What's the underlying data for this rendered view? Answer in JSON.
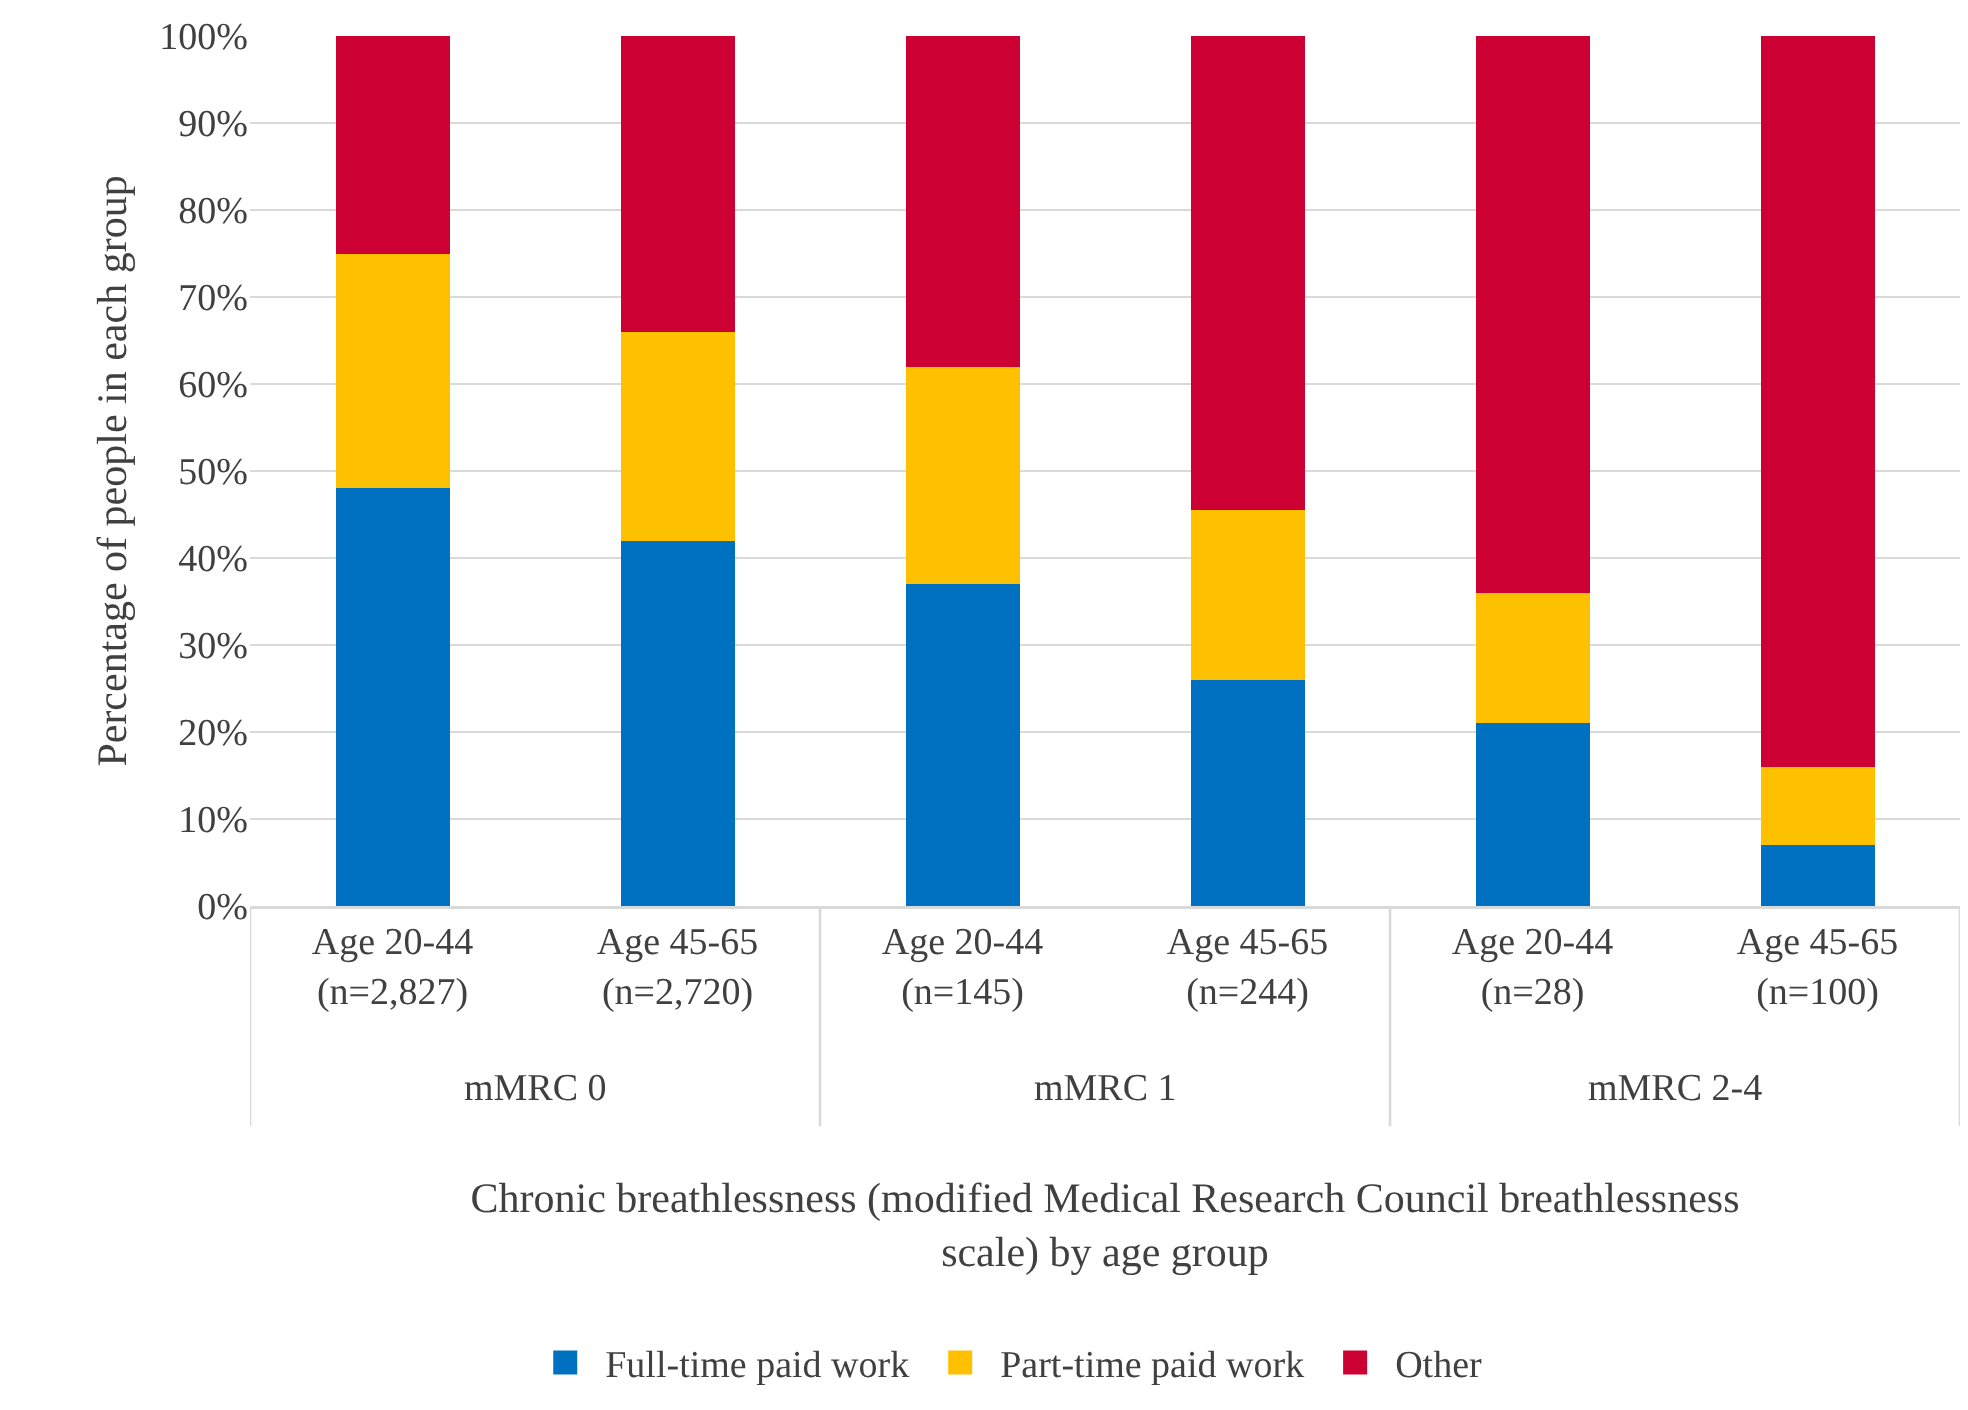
{
  "chart_data": {
    "type": "bar",
    "stacked": true,
    "xlabel": "Chronic breathlessness (modified Medical Research Council breathlessness\nscale) by age group",
    "ylabel": "Percentage of people in each group",
    "categories": [
      "Age 20-44\n(n=2,827)",
      "Age 45-65\n(n=2,720)",
      "Age 20-44\n(n=145)",
      "Age 45-65\n(n=244)",
      "Age 20-44\n(n=28)",
      "Age 45-65\n(n=100)"
    ],
    "series": [
      {
        "name": "Full-time paid work",
        "color": "#0070c0",
        "values": [
          48,
          42,
          37,
          26,
          21,
          7
        ]
      },
      {
        "name": "Part-time paid work",
        "color": "#ffc000",
        "values": [
          27,
          24,
          25,
          19.5,
          15,
          9
        ]
      },
      {
        "name": "Other",
        "color": "#cc0033",
        "values": [
          25,
          34,
          38,
          54.5,
          64,
          84
        ]
      }
    ],
    "annotations": [
      "mMRC 0",
      "mMRC 1",
      "mMRC 2-4"
    ],
    "ylim": [
      0,
      100
    ],
    "yticks": [
      {
        "value": 0,
        "label": "0%"
      },
      {
        "value": 10,
        "label": "10%"
      },
      {
        "value": 20,
        "label": "20%"
      },
      {
        "value": 30,
        "label": "30%"
      },
      {
        "value": 40,
        "label": "40%"
      },
      {
        "value": 50,
        "label": "50%"
      },
      {
        "value": 60,
        "label": "60%"
      },
      {
        "value": 70,
        "label": "70%"
      },
      {
        "value": 80,
        "label": "80%"
      },
      {
        "value": 90,
        "label": "90%"
      },
      {
        "value": 100,
        "label": "100%"
      }
    ],
    "grid": "y",
    "legend": "bottom"
  }
}
